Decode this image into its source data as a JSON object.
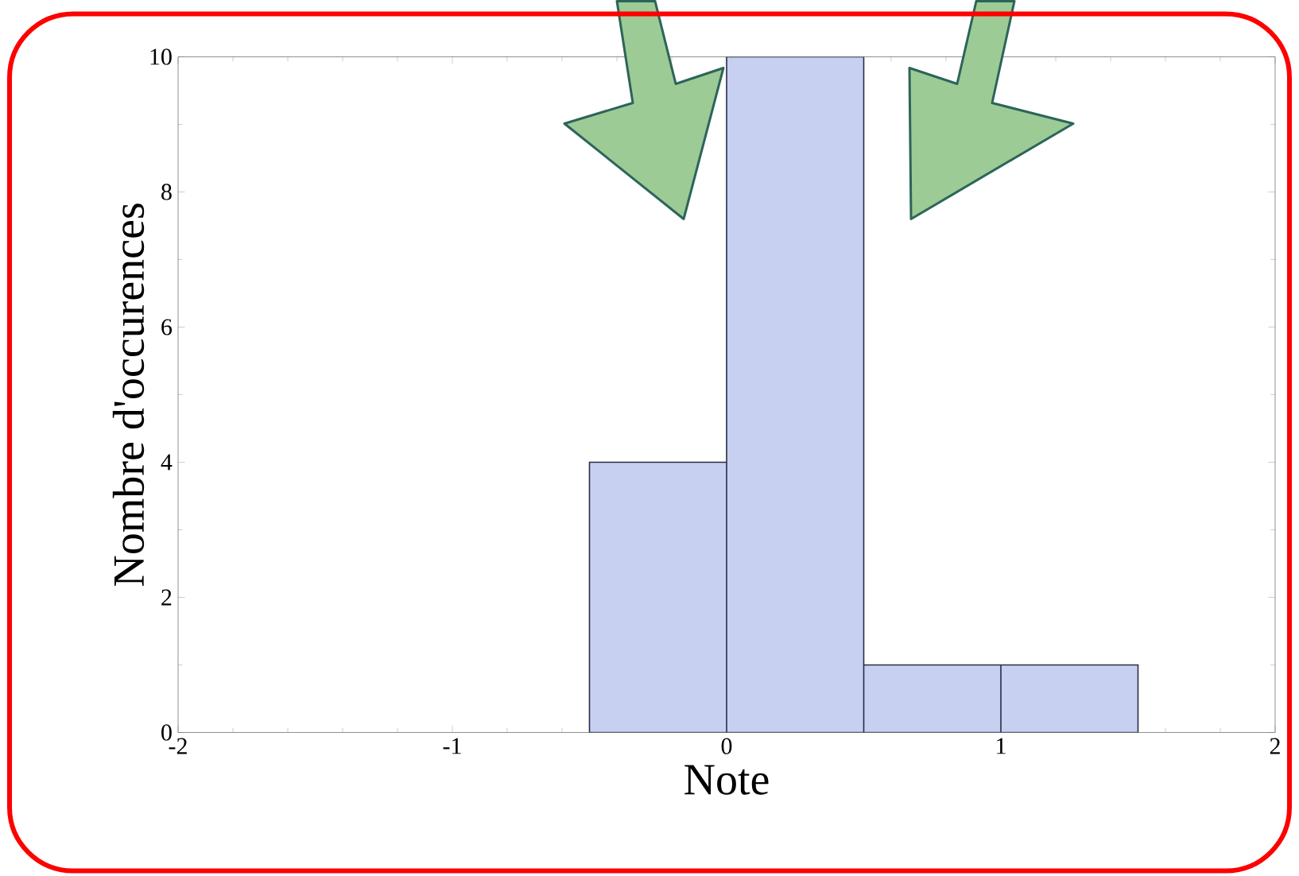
{
  "chart_data": {
    "type": "histogram",
    "xlabel": "Note",
    "ylabel": "Nombre d'occurences",
    "bins": [
      -0.5,
      0,
      0.5,
      1,
      1.5
    ],
    "values": [
      4,
      10,
      1,
      1
    ],
    "color": "#c8d0f2",
    "xlim": [
      -2,
      2
    ],
    "ylim": [
      0,
      10
    ],
    "xticks": [
      -2,
      -1,
      0,
      1,
      2
    ],
    "yticks": [
      0,
      2,
      4,
      6,
      8,
      10
    ]
  }
}
